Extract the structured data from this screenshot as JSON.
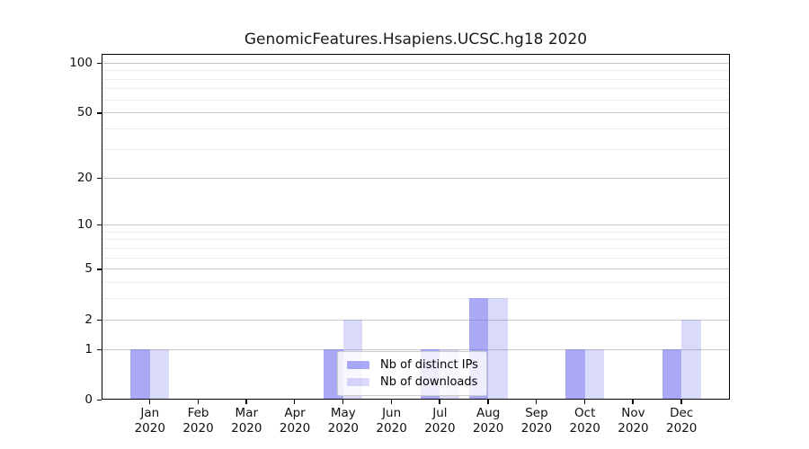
{
  "chart_data": {
    "type": "bar",
    "title": "GenomicFeatures.Hsapiens.UCSC.hg18 2020",
    "xlabel": "",
    "ylabel": "",
    "year_label": "2020",
    "categories": [
      "Jan",
      "Feb",
      "Mar",
      "Apr",
      "May",
      "Jun",
      "Jul",
      "Aug",
      "Sep",
      "Oct",
      "Nov",
      "Dec"
    ],
    "series": [
      {
        "name": "Nb of distinct IPs",
        "values": [
          1,
          0,
          0,
          0,
          1,
          0,
          1,
          3,
          0,
          1,
          0,
          1
        ],
        "color": "rgba(102,102,238,0.56)"
      },
      {
        "name": "Nb of downloads",
        "values": [
          1,
          0,
          0,
          0,
          2,
          0,
          1,
          3,
          0,
          1,
          0,
          2
        ],
        "color": "rgba(102,102,238,0.24)"
      }
    ],
    "yscale": "log1p",
    "ylim": [
      0,
      113
    ],
    "ymax": 113,
    "yticks": [
      0,
      1,
      2,
      5,
      10,
      20,
      50,
      100
    ],
    "yminorgrid": [
      3,
      4,
      6,
      7,
      8,
      9,
      30,
      40,
      60,
      70,
      80,
      90
    ],
    "grid": true,
    "legend_position": "lower center",
    "colors": {
      "grid_major": "#c9c9c9",
      "grid_minor": "#ececec",
      "axis": "#000000",
      "text": "#111111",
      "legend_border": "#cccccc",
      "legend_bg": "rgba(255,255,255,0.8)"
    }
  }
}
